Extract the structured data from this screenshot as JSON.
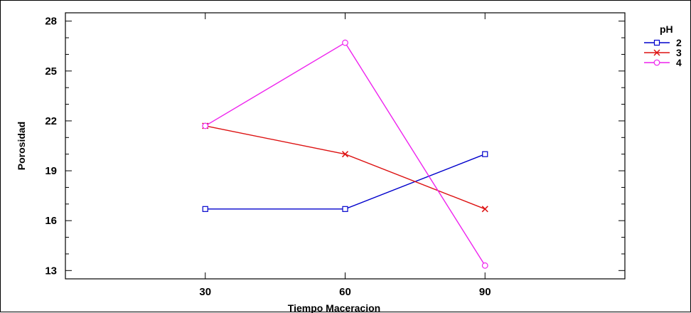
{
  "chart_data": {
    "type": "line",
    "xlabel": "Tiempo Maceracion",
    "ylabel": "Porosidad",
    "x": [
      30,
      60,
      90
    ],
    "xlim": [
      0,
      120
    ],
    "ylim": [
      12.5,
      28.5
    ],
    "yticks": [
      13,
      16,
      19,
      22,
      25,
      28
    ],
    "xticks": [
      30,
      60,
      90
    ],
    "grid": false,
    "legend": {
      "title": "pH",
      "position": "right"
    },
    "series": [
      {
        "name": "2",
        "values": [
          16.7,
          16.7,
          20.0
        ],
        "color": "#0000cc",
        "marker": "square"
      },
      {
        "name": "3",
        "values": [
          21.7,
          20.0,
          16.7
        ],
        "color": "#dd1111",
        "marker": "x"
      },
      {
        "name": "4",
        "values": [
          21.7,
          26.7,
          13.3
        ],
        "color": "#ee22ee",
        "marker": "circle"
      }
    ]
  }
}
